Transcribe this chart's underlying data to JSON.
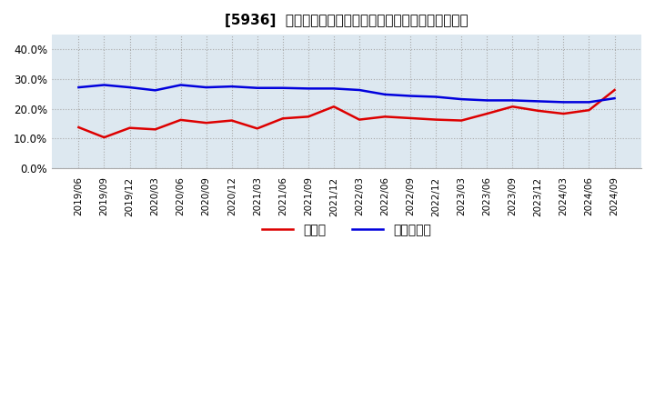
{
  "title": "[5936]  現預金、有利子負債の総資産に対する比率の推移",
  "legend_cash": "現預金",
  "legend_debt": "有利子負債",
  "cash_color": "#dd0000",
  "debt_color": "#0000dd",
  "background_color": "#ffffff",
  "plot_bg_color": "#dde8f0",
  "grid_color": "#aaaaaa",
  "ylim": [
    0.0,
    0.45
  ],
  "yticks": [
    0.0,
    0.1,
    0.2,
    0.3,
    0.4
  ],
  "dates": [
    "2019/06",
    "2019/09",
    "2019/12",
    "2020/03",
    "2020/06",
    "2020/09",
    "2020/12",
    "2021/03",
    "2021/06",
    "2021/09",
    "2021/12",
    "2022/03",
    "2022/06",
    "2022/09",
    "2022/12",
    "2023/03",
    "2023/06",
    "2023/09",
    "2023/12",
    "2024/03",
    "2024/06",
    "2024/09"
  ],
  "cash_values": [
    0.137,
    0.103,
    0.135,
    0.13,
    0.162,
    0.152,
    0.16,
    0.133,
    0.167,
    0.173,
    0.207,
    0.163,
    0.173,
    0.168,
    0.163,
    0.16,
    0.183,
    0.207,
    0.193,
    0.183,
    0.195,
    0.263
  ],
  "debt_values": [
    0.272,
    0.28,
    0.272,
    0.262,
    0.28,
    0.272,
    0.275,
    0.27,
    0.27,
    0.268,
    0.268,
    0.263,
    0.248,
    0.243,
    0.24,
    0.232,
    0.228,
    0.228,
    0.225,
    0.222,
    0.222,
    0.235
  ]
}
